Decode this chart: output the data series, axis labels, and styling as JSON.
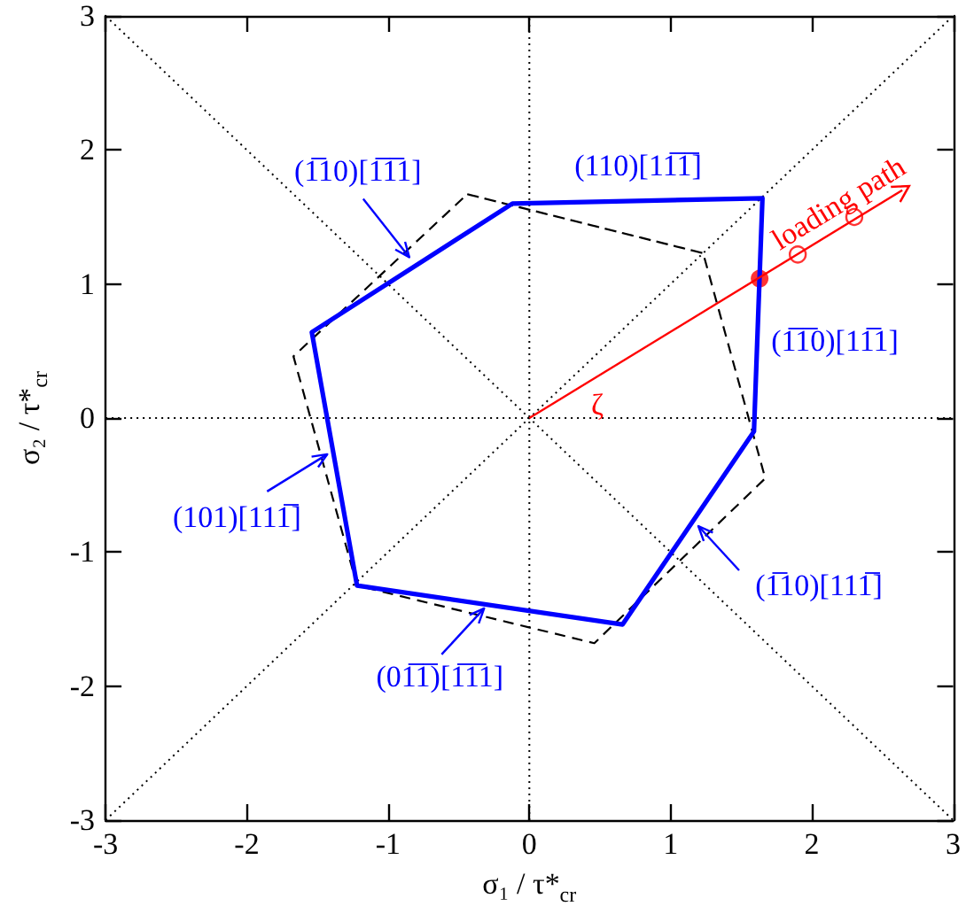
{
  "chart_data": {
    "type": "line",
    "xlabel": "σ₁ / τ*$_{cr}$",
    "ylabel": "σ₂ / τ*$_{cr}$",
    "xlim": [
      -3,
      3
    ],
    "ylim": [
      -3,
      3
    ],
    "xticks": [
      -3,
      -2,
      -1,
      0,
      1,
      2,
      3
    ],
    "yticks": [
      -3,
      -2,
      -1,
      0,
      1,
      2,
      3
    ],
    "series": [
      {
        "color": "#000000",
        "x": [
          0,
          0
        ],
        "values": [
          -3,
          3
        ],
        "line_style": "dotted",
        "marker": "none"
      },
      {
        "color": "#000000",
        "x": [
          -3,
          3
        ],
        "values": [
          0,
          0
        ],
        "line_style": "dotted",
        "marker": "none"
      },
      {
        "color": "#000000",
        "x": [
          -3,
          3
        ],
        "values": [
          -3,
          3
        ],
        "line_style": "dotted",
        "marker": "none"
      },
      {
        "color": "#000000",
        "x": [
          -3,
          3
        ],
        "values": [
          3,
          -3
        ],
        "line_style": "dotted",
        "marker": "none"
      },
      {
        "color": "#000000",
        "x": [
          -0.44,
          1.23,
          1.67,
          0.46,
          -1.22,
          -1.67,
          -0.44,
          1.23
        ],
        "values": [
          1.67,
          1.23,
          -0.45,
          -1.68,
          -1.25,
          0.46,
          1.67,
          1.23
        ],
        "line_style": "dashed",
        "marker": "none"
      },
      {
        "color": "#0000ff",
        "x": [
          -0.12,
          1.65,
          1.59,
          0.66,
          -1.22,
          -1.54,
          -0.12,
          1.65
        ],
        "values": [
          1.6,
          1.64,
          -0.1,
          -1.54,
          -1.25,
          0.64,
          1.6,
          1.64
        ],
        "line_style": "solid",
        "marker": "none"
      },
      {
        "name": "loading path",
        "color": "#ff0000",
        "x": [
          0,
          2.64
        ],
        "values": [
          0,
          1.7
        ],
        "line_style": "solid",
        "marker": "none"
      },
      {
        "type": "scatter",
        "color": "#ff0000",
        "x": [
          1.63
        ],
        "values": [
          1.04
        ],
        "marker": "circle"
      },
      {
        "type": "scatter",
        "color": "#ff0000",
        "x": [
          1.9,
          2.3
        ],
        "values": [
          1.22,
          1.5
        ],
        "marker": "circle"
      }
    ],
    "annotations": [
      {
        "text": "(1̅10)[1̅1̅1]",
        "x": -0.85,
        "y": 1.2
      },
      "(110)[11̅1̅]",
      "(1̅1̅0)[11̅1]",
      {
        "text": "(101)[111̅]",
        "x": -1.43,
        "y": -0.27
      },
      {
        "text": "(01̅1̅)[1̅1̅1]",
        "x": -0.32,
        "y": -1.42
      },
      "(1̅10)[111̅]",
      "ζ"
    ]
  }
}
